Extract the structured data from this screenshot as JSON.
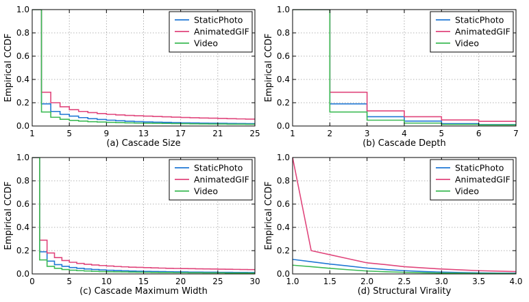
{
  "chart_data": [
    {
      "type": "line",
      "step": true,
      "title": "(a) Cascade Size",
      "xlabel": "(a) Cascade Size",
      "ylabel": "Empirical CCDF",
      "xlim": [
        1,
        25
      ],
      "ylim": [
        0,
        1
      ],
      "xticks": [
        1,
        5,
        9,
        13,
        17,
        21,
        25
      ],
      "xtick_labels": [
        "1",
        "5",
        "9",
        "13",
        "17",
        "21",
        "25"
      ],
      "yticks": [
        0,
        0.2,
        0.4,
        0.6,
        0.8,
        1
      ],
      "ytick_labels": [
        "0.0",
        "0.2",
        "0.4",
        "0.6",
        "0.8",
        "1.0"
      ],
      "legend_position": "top-right",
      "x": [
        1,
        2,
        3,
        4,
        5,
        6,
        7,
        8,
        9,
        10,
        11,
        12,
        13,
        14,
        15,
        16,
        17,
        18,
        19,
        20,
        21,
        22,
        23,
        24,
        25
      ],
      "series": [
        {
          "name": "StaticPhoto",
          "color": "#1f77d4",
          "values": [
            1.0,
            0.19,
            0.125,
            0.1,
            0.085,
            0.072,
            0.063,
            0.056,
            0.05,
            0.045,
            0.041,
            0.038,
            0.035,
            0.033,
            0.031,
            0.029,
            0.027,
            0.026,
            0.025,
            0.024,
            0.023,
            0.022,
            0.021,
            0.02,
            0.02
          ]
        },
        {
          "name": "AnimatedGIF",
          "color": "#e0457b",
          "values": [
            1.0,
            0.29,
            0.2,
            0.165,
            0.14,
            0.125,
            0.115,
            0.107,
            0.1,
            0.095,
            0.091,
            0.088,
            0.085,
            0.082,
            0.079,
            0.076,
            0.073,
            0.071,
            0.069,
            0.067,
            0.065,
            0.063,
            0.061,
            0.059,
            0.057
          ]
        },
        {
          "name": "Video",
          "color": "#3cba54",
          "values": [
            1.0,
            0.12,
            0.075,
            0.058,
            0.048,
            0.042,
            0.037,
            0.034,
            0.031,
            0.029,
            0.027,
            0.025,
            0.024,
            0.023,
            0.022,
            0.021,
            0.02,
            0.019,
            0.018,
            0.017,
            0.017,
            0.016,
            0.016,
            0.015,
            0.015
          ]
        }
      ]
    },
    {
      "type": "line",
      "step": true,
      "title": "(b) Cascade Depth",
      "xlabel": "(b) Cascade Depth",
      "ylabel": "Empirical CCDF",
      "xlim": [
        1,
        7
      ],
      "ylim": [
        0,
        1
      ],
      "xticks": [
        1,
        2,
        3,
        4,
        5,
        6,
        7
      ],
      "xtick_labels": [
        "1",
        "2",
        "3",
        "4",
        "5",
        "6",
        "7"
      ],
      "yticks": [
        0,
        0.2,
        0.4,
        0.6,
        0.8,
        1
      ],
      "ytick_labels": [
        "0.0",
        "0.2",
        "0.4",
        "0.6",
        "0.8",
        "1.0"
      ],
      "legend_position": "top-right",
      "x": [
        1,
        2,
        3,
        4,
        5,
        6,
        7
      ],
      "series": [
        {
          "name": "StaticPhoto",
          "color": "#1f77d4",
          "values": [
            1.0,
            0.19,
            0.08,
            0.042,
            0.02,
            0.012,
            0.008
          ]
        },
        {
          "name": "AnimatedGIF",
          "color": "#e0457b",
          "values": [
            1.0,
            0.29,
            0.13,
            0.08,
            0.052,
            0.04,
            0.03
          ]
        },
        {
          "name": "Video",
          "color": "#3cba54",
          "values": [
            1.0,
            0.12,
            0.05,
            0.025,
            0.014,
            0.009,
            0.006
          ]
        }
      ]
    },
    {
      "type": "line",
      "step": true,
      "title": "(c) Cascade Maximum Width",
      "xlabel": "(c) Cascade Maximum Width",
      "ylabel": "Empirical CCDF",
      "xlim": [
        0,
        30
      ],
      "ylim": [
        0,
        1
      ],
      "xticks": [
        0,
        5,
        10,
        15,
        20,
        25,
        30
      ],
      "xtick_labels": [
        "0",
        "5",
        "10",
        "15",
        "20",
        "25",
        "30"
      ],
      "yticks": [
        0,
        0.2,
        0.4,
        0.6,
        0.8,
        1
      ],
      "ytick_labels": [
        "0.0",
        "0.2",
        "0.4",
        "0.6",
        "0.8",
        "1.0"
      ],
      "legend_position": "top-right",
      "x": [
        0,
        1,
        2,
        3,
        4,
        5,
        6,
        7,
        8,
        9,
        10,
        11,
        12,
        13,
        14,
        15,
        16,
        17,
        18,
        19,
        20,
        21,
        22,
        23,
        24,
        25,
        26,
        27,
        28,
        29,
        30
      ],
      "series": [
        {
          "name": "StaticPhoto",
          "color": "#1f77d4",
          "values": [
            1.0,
            0.19,
            0.11,
            0.08,
            0.065,
            0.055,
            0.048,
            0.042,
            0.038,
            0.034,
            0.031,
            0.029,
            0.027,
            0.025,
            0.023,
            0.022,
            0.021,
            0.02,
            0.019,
            0.018,
            0.017,
            0.016,
            0.016,
            0.015,
            0.015,
            0.014,
            0.014,
            0.013,
            0.013,
            0.012,
            0.012
          ]
        },
        {
          "name": "AnimatedGIF",
          "color": "#e0457b",
          "values": [
            1.0,
            0.29,
            0.18,
            0.14,
            0.115,
            0.1,
            0.09,
            0.083,
            0.077,
            0.072,
            0.068,
            0.064,
            0.061,
            0.058,
            0.056,
            0.054,
            0.052,
            0.05,
            0.048,
            0.047,
            0.046,
            0.045,
            0.044,
            0.043,
            0.042,
            0.041,
            0.04,
            0.039,
            0.038,
            0.037,
            0.036
          ]
        },
        {
          "name": "Video",
          "color": "#3cba54",
          "values": [
            1.0,
            0.12,
            0.065,
            0.048,
            0.038,
            0.032,
            0.028,
            0.025,
            0.022,
            0.02,
            0.019,
            0.018,
            0.017,
            0.016,
            0.015,
            0.014,
            0.013,
            0.012,
            0.012,
            0.011,
            0.011,
            0.01,
            0.01,
            0.009,
            0.009,
            0.009,
            0.008,
            0.008,
            0.008,
            0.007,
            0.007
          ]
        }
      ]
    },
    {
      "type": "line",
      "step": false,
      "title": "(d) Structural Virality",
      "xlabel": "(d) Structural Virality",
      "ylabel": "Empirical CCDF",
      "xlim": [
        1,
        4
      ],
      "ylim": [
        0,
        1
      ],
      "xticks": [
        1,
        1.5,
        2,
        2.5,
        3,
        3.5,
        4
      ],
      "xtick_labels": [
        "1.0",
        "1.5",
        "2.0",
        "2.5",
        "3.0",
        "3.5",
        "4.0"
      ],
      "yticks": [
        0,
        0.2,
        0.4,
        0.6,
        0.8,
        1
      ],
      "ytick_labels": [
        "0.0",
        "0.2",
        "0.4",
        "0.6",
        "0.8",
        "1.0"
      ],
      "legend_position": "top-right",
      "x": [
        1,
        1.25,
        1.5,
        1.75,
        2,
        2.25,
        2.5,
        2.75,
        3,
        3.25,
        3.5,
        3.75,
        4
      ],
      "series": [
        {
          "name": "StaticPhoto",
          "color": "#1f77d4",
          "values": [
            0.125,
            0.105,
            0.085,
            0.068,
            0.05,
            0.038,
            0.028,
            0.021,
            0.016,
            0.012,
            0.009,
            0.007,
            0.006
          ]
        },
        {
          "name": "AnimatedGIF",
          "color": "#e0457b",
          "values": [
            1.0,
            0.2,
            0.165,
            0.13,
            0.095,
            0.08,
            0.062,
            0.052,
            0.042,
            0.035,
            0.028,
            0.024,
            0.02
          ]
        },
        {
          "name": "Video",
          "color": "#3cba54",
          "values": [
            0.075,
            0.062,
            0.048,
            0.036,
            0.025,
            0.019,
            0.014,
            0.01,
            0.008,
            0.006,
            0.005,
            0.004,
            0.003
          ]
        }
      ]
    }
  ]
}
